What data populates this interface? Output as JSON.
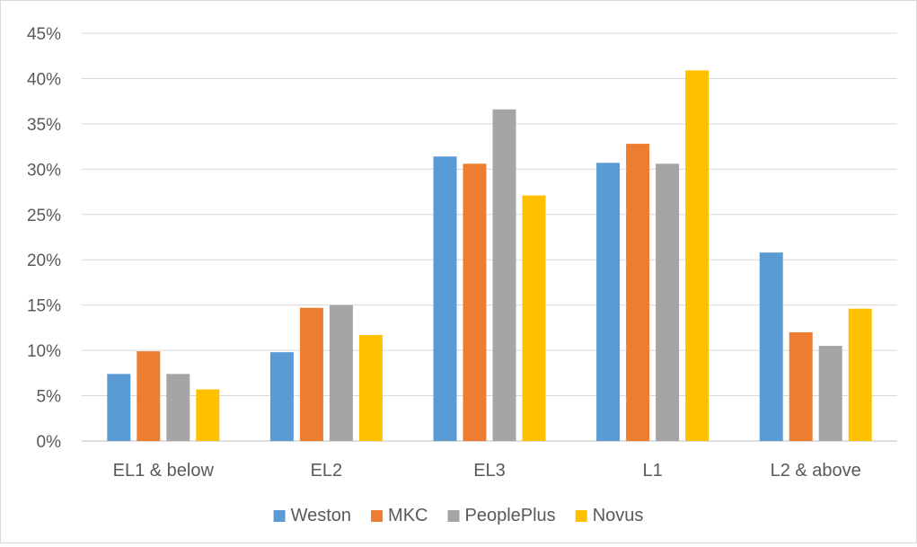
{
  "chart_data": {
    "type": "bar",
    "title": "",
    "xlabel": "",
    "ylabel": "",
    "ylim": [
      0,
      45
    ],
    "y_ticks": [
      "0%",
      "5%",
      "10%",
      "15%",
      "20%",
      "25%",
      "30%",
      "35%",
      "40%",
      "45%"
    ],
    "y_unit": "%",
    "grid": "horizontal",
    "legend_position": "bottom",
    "categories": [
      "EL1 & below",
      "EL2",
      "EL3",
      "L1",
      "L2 & above"
    ],
    "series": [
      {
        "name": "Weston",
        "color": "#5b9bd5",
        "values": [
          7.4,
          9.8,
          31.4,
          30.7,
          20.8
        ]
      },
      {
        "name": "MKC",
        "color": "#ed7d31",
        "values": [
          9.9,
          14.7,
          30.6,
          32.8,
          12.0
        ]
      },
      {
        "name": "PeoplePlus",
        "color": "#a5a5a5",
        "values": [
          7.4,
          15.0,
          36.6,
          30.6,
          10.5
        ]
      },
      {
        "name": "Novus",
        "color": "#ffc000",
        "values": [
          5.7,
          11.7,
          27.1,
          40.9,
          14.6
        ]
      }
    ]
  }
}
